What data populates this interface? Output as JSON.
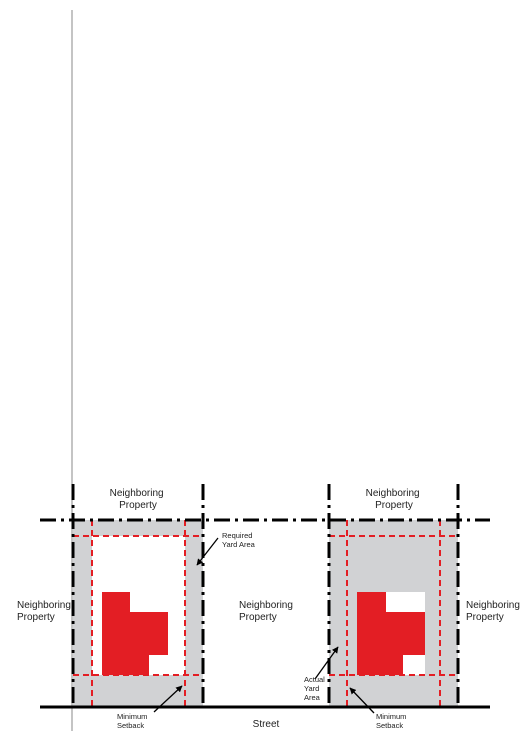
{
  "colors": {
    "yard_gray": "#d1d2d4",
    "building_red": "#e31e24",
    "setback_dash": "#e31e24",
    "boundary": "#000000"
  },
  "labels": {
    "neighboring_property_top": [
      "Neighboring",
      "Property"
    ],
    "neighboring_property_left": [
      "Neighboring",
      "Property"
    ],
    "neighboring_property_middle": [
      "Neighboring",
      "Property"
    ],
    "neighboring_property_right": [
      "Neighboring",
      "Property"
    ],
    "required_yard_area": [
      "Required",
      "Yard Area"
    ],
    "actual_yard_area": [
      "Actual",
      "Yard",
      "Area"
    ],
    "minimum_setback": [
      "Minimum",
      "Setback"
    ],
    "street": "Street"
  }
}
